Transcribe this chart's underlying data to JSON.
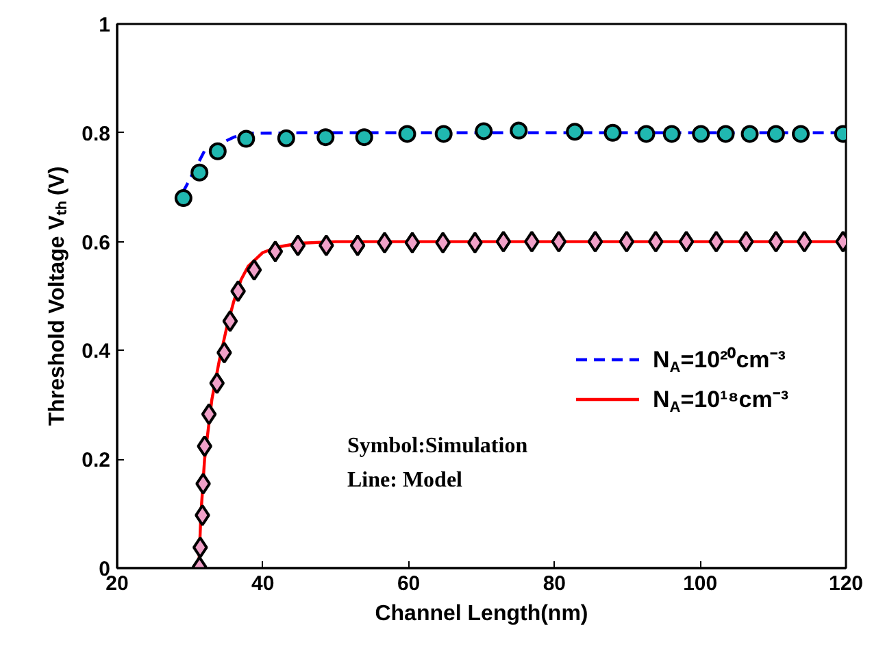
{
  "chart_data": {
    "type": "line",
    "xlabel": "Channel Length(nm)",
    "ylabel": "Threshold Voltage Vₜₕ (V)",
    "xlim": [
      20,
      120
    ],
    "ylim": [
      0,
      1
    ],
    "xticks": [
      20,
      40,
      60,
      80,
      100,
      120
    ],
    "yticks": [
      0,
      {
        "value": 0.2,
        "label": "0.2"
      },
      {
        "value": 0.4,
        "label": "0.4"
      },
      {
        "value": 0.6,
        "label": "0.6"
      },
      {
        "value": 0.8,
        "label": "0.8"
      },
      1
    ],
    "grid": false,
    "legend": "right",
    "annotations": [
      "Symbol:Simulation",
      "Line: Model"
    ],
    "series": [
      {
        "name": "N$_{A}$=10²⁰cm⁻³",
        "line_style": "dashed",
        "color": "#0000ff",
        "x": [
          29,
          31,
          32,
          34,
          36,
          38,
          45,
          120
        ],
        "values": [
          0.69,
          0.741,
          0.767,
          0.779,
          0.792,
          0.799,
          0.8,
          0.8
        ]
      },
      {
        "name": "N$_{A}$=10¹⁸cm⁻³",
        "line_style": "solid",
        "color": "#ff0000",
        "x": [
          31.2,
          31.5,
          32,
          33,
          34,
          35,
          36,
          37,
          38,
          40,
          42,
          45,
          50,
          120
        ],
        "values": [
          0,
          0.1,
          0.2,
          0.31,
          0.38,
          0.44,
          0.49,
          0.53,
          0.555,
          0.58,
          0.59,
          0.597,
          0.6,
          0.6
        ]
      },
      {
        "type": "scatter",
        "marker": "circle",
        "color": "#20b8b0",
        "x": [
          29.1,
          31.3,
          33.8,
          37.7,
          43.2,
          48.6,
          53.9,
          59.8,
          64.8,
          70.3,
          75.1,
          82.8,
          88.0,
          92.6,
          96.1,
          100.1,
          103.5,
          106.8,
          110.4,
          113.8,
          119.6
        ],
        "values": [
          0.68,
          0.727,
          0.766,
          0.789,
          0.79,
          0.792,
          0.792,
          0.798,
          0.798,
          0.803,
          0.804,
          0.802,
          0.8,
          0.798,
          0.798,
          0.798,
          0.798,
          0.798,
          0.798,
          0.798,
          0.798
        ]
      },
      {
        "type": "scatter",
        "marker": "diamond",
        "color": "#f0a0c8",
        "x": [
          31.3,
          31.4,
          31.7,
          31.8,
          32.0,
          32.6,
          33.7,
          34.7,
          35.5,
          36.6,
          38.8,
          41.7,
          44.8,
          48.7,
          53.0,
          56.7,
          60.5,
          64.7,
          69.1,
          73.0,
          76.9,
          80.6,
          85.6,
          89.9,
          93.9,
          98.1,
          102.2,
          106.3,
          110.4,
          114.3,
          119.6
        ],
        "values": [
          0.002,
          0.038,
          0.097,
          0.155,
          0.224,
          0.283,
          0.34,
          0.396,
          0.454,
          0.509,
          0.548,
          0.582,
          0.593,
          0.593,
          0.593,
          0.598,
          0.598,
          0.598,
          0.598,
          0.6,
          0.6,
          0.6,
          0.6,
          0.6,
          0.6,
          0.6,
          0.6,
          0.6,
          0.6,
          0.6,
          0.6
        ]
      }
    ]
  }
}
